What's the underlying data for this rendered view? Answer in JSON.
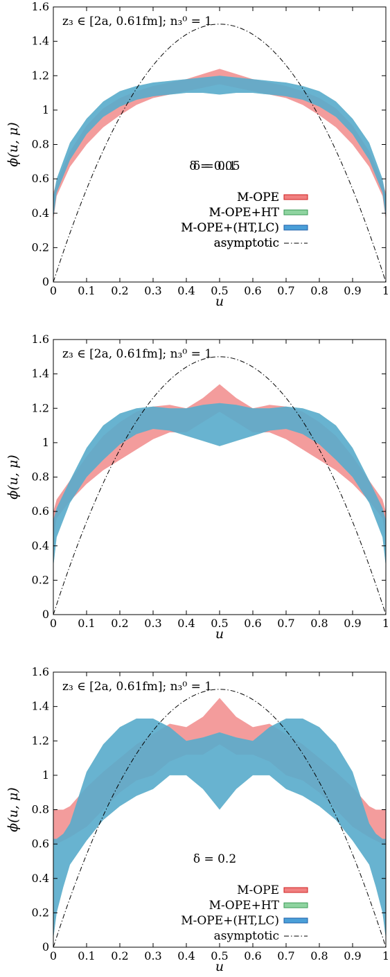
{
  "colors": {
    "m_ope": "#f08080",
    "m_ope_ht": "#8fd4a0",
    "m_ope_ht_lc": "#4a9fd8",
    "overlap": "#5a7fae",
    "asymptotic": "#000000"
  },
  "chart_data": [
    {
      "type": "area",
      "annotation": "z₃ ∈ [2a, 0.61fm]; n₃⁰ = 1",
      "delta_label": "δ = 0.05",
      "xlabel": "u",
      "ylabel": "ϕ(u, μ)",
      "xlim": [
        0,
        1
      ],
      "ylim": [
        0,
        1.6
      ],
      "xticks": [
        "0",
        "0.1",
        "0.2",
        "0.3",
        "0.4",
        "0.5",
        "0.6",
        "0.7",
        "0.8",
        "0.9",
        "1"
      ],
      "yticks": [
        "0",
        "0.2",
        "0.4",
        "0.6",
        "0.8",
        "1",
        "1.2",
        "1.4",
        "1.6"
      ],
      "legend_position": "center-right",
      "x": [
        0,
        0.01,
        0.05,
        0.1,
        0.15,
        0.2,
        0.25,
        0.3,
        0.35,
        0.4,
        0.45,
        0.5,
        0.55,
        0.6,
        0.65,
        0.7,
        0.75,
        0.8,
        0.85,
        0.9,
        0.95,
        0.99,
        1
      ],
      "series": [
        {
          "name": "M-OPE",
          "color": "#f08080",
          "upper": [
            0.52,
            0.58,
            0.76,
            0.91,
            1.01,
            1.07,
            1.11,
            1.14,
            1.16,
            1.18,
            1.21,
            1.24,
            1.21,
            1.18,
            1.16,
            1.14,
            1.11,
            1.07,
            1.01,
            0.91,
            0.76,
            0.58,
            0.52
          ],
          "lower": [
            0.36,
            0.5,
            0.67,
            0.8,
            0.9,
            0.97,
            1.03,
            1.07,
            1.09,
            1.11,
            1.13,
            1.15,
            1.13,
            1.11,
            1.09,
            1.07,
            1.03,
            0.97,
            0.9,
            0.8,
            0.67,
            0.5,
            0.36
          ]
        },
        {
          "name": "M-OPE+HT",
          "color": "#8fd4a0",
          "upper": [
            0.5,
            0.6,
            0.81,
            0.95,
            1.05,
            1.11,
            1.14,
            1.16,
            1.17,
            1.18,
            1.19,
            1.2,
            1.19,
            1.18,
            1.17,
            1.16,
            1.14,
            1.11,
            1.05,
            0.95,
            0.81,
            0.6,
            0.5
          ],
          "lower": [
            0.37,
            0.52,
            0.71,
            0.86,
            0.96,
            1.02,
            1.06,
            1.08,
            1.09,
            1.1,
            1.1,
            1.09,
            1.1,
            1.1,
            1.09,
            1.08,
            1.06,
            1.02,
            0.96,
            0.86,
            0.71,
            0.52,
            0.37
          ]
        },
        {
          "name": "M-OPE+(HT,LC)",
          "color": "#4a9fd8",
          "upper": [
            0.5,
            0.6,
            0.81,
            0.95,
            1.05,
            1.11,
            1.14,
            1.16,
            1.17,
            1.18,
            1.19,
            1.2,
            1.19,
            1.18,
            1.17,
            1.16,
            1.14,
            1.11,
            1.05,
            0.95,
            0.81,
            0.6,
            0.5
          ],
          "lower": [
            0.37,
            0.52,
            0.71,
            0.86,
            0.96,
            1.02,
            1.06,
            1.08,
            1.09,
            1.1,
            1.1,
            1.09,
            1.1,
            1.1,
            1.09,
            1.08,
            1.06,
            1.02,
            0.96,
            0.86,
            0.71,
            0.52,
            0.37
          ]
        },
        {
          "name": "asymptotic",
          "style": "dash-dot",
          "formula": "6u(1-u)"
        }
      ]
    },
    {
      "type": "area",
      "annotation": "z₃ ∈ [2a, 0.61fm]; n₃⁰ = 1",
      "delta_label": "δ = 0.1",
      "xlabel": "u",
      "ylabel": "ϕ(u, μ)",
      "xlim": [
        0,
        1
      ],
      "ylim": [
        0,
        1.6
      ],
      "xticks": [
        "0",
        "0.1",
        "0.2",
        "0.3",
        "0.4",
        "0.5",
        "0.6",
        "0.7",
        "0.8",
        "0.9",
        "1"
      ],
      "yticks": [
        "0",
        "0.2",
        "0.4",
        "0.6",
        "0.8",
        "1",
        "1.2",
        "1.4",
        "1.6"
      ],
      "legend_position": "center-right",
      "x": [
        0,
        0.01,
        0.05,
        0.1,
        0.15,
        0.2,
        0.25,
        0.3,
        0.35,
        0.4,
        0.45,
        0.5,
        0.55,
        0.6,
        0.65,
        0.7,
        0.75,
        0.8,
        0.85,
        0.9,
        0.95,
        0.99,
        1
      ],
      "series": [
        {
          "name": "M-OPE",
          "color": "#f08080",
          "upper": [
            0.6,
            0.67,
            0.78,
            0.92,
            1.04,
            1.12,
            1.18,
            1.21,
            1.22,
            1.2,
            1.26,
            1.34,
            1.26,
            1.2,
            1.22,
            1.21,
            1.18,
            1.12,
            1.04,
            0.92,
            0.78,
            0.67,
            0.6
          ],
          "lower": [
            0.44,
            0.56,
            0.66,
            0.76,
            0.84,
            0.9,
            0.96,
            1.02,
            1.06,
            1.06,
            1.12,
            1.18,
            1.12,
            1.06,
            1.06,
            1.02,
            0.96,
            0.9,
            0.84,
            0.76,
            0.66,
            0.56,
            0.44
          ]
        },
        {
          "name": "M-OPE+HT",
          "color": "#8fd4a0",
          "upper": [
            0.55,
            0.62,
            0.78,
            0.97,
            1.1,
            1.17,
            1.2,
            1.21,
            1.2,
            1.2,
            1.22,
            1.23,
            1.22,
            1.2,
            1.2,
            1.21,
            1.2,
            1.17,
            1.1,
            0.97,
            0.78,
            0.62,
            0.55
          ],
          "lower": [
            0.28,
            0.45,
            0.65,
            0.8,
            0.9,
            0.99,
            1.05,
            1.08,
            1.07,
            1.04,
            1.01,
            0.98,
            1.01,
            1.04,
            1.07,
            1.08,
            1.05,
            0.99,
            0.9,
            0.8,
            0.65,
            0.45,
            0.28
          ]
        },
        {
          "name": "M-OPE+(HT,LC)",
          "color": "#4a9fd8",
          "upper": [
            0.55,
            0.62,
            0.78,
            0.97,
            1.1,
            1.17,
            1.2,
            1.21,
            1.2,
            1.2,
            1.22,
            1.23,
            1.22,
            1.2,
            1.2,
            1.21,
            1.2,
            1.17,
            1.1,
            0.97,
            0.78,
            0.62,
            0.55
          ],
          "lower": [
            0.28,
            0.45,
            0.65,
            0.8,
            0.9,
            0.99,
            1.05,
            1.08,
            1.07,
            1.04,
            1.01,
            0.98,
            1.01,
            1.04,
            1.07,
            1.08,
            1.05,
            0.99,
            0.9,
            0.8,
            0.65,
            0.45,
            0.28
          ]
        },
        {
          "name": "asymptotic",
          "style": "dash-dot",
          "formula": "6u(1-u)"
        }
      ]
    },
    {
      "type": "area",
      "annotation": "z₃ ∈ [2a, 0.61fm]; n₃⁰ = 1",
      "delta_label": "δ = 0.2",
      "xlabel": "u",
      "ylabel": "ϕ(u, μ)",
      "xlim": [
        0,
        1
      ],
      "ylim": [
        0,
        1.6
      ],
      "xticks": [
        "0",
        "0.1",
        "0.2",
        "0.3",
        "0.4",
        "0.5",
        "0.6",
        "0.7",
        "0.8",
        "0.9",
        "1"
      ],
      "yticks": [
        "0",
        "0.2",
        "0.4",
        "0.6",
        "0.8",
        "1",
        "1.2",
        "1.4",
        "1.6"
      ],
      "legend_position": "lower-right",
      "x": [
        0,
        0.01,
        0.03,
        0.05,
        0.1,
        0.15,
        0.2,
        0.25,
        0.3,
        0.35,
        0.4,
        0.45,
        0.5,
        0.55,
        0.6,
        0.65,
        0.7,
        0.75,
        0.8,
        0.85,
        0.9,
        0.95,
        0.97,
        0.99,
        1
      ],
      "series": [
        {
          "name": "M-OPE",
          "color": "#f08080",
          "upper": [
            0.8,
            0.8,
            0.8,
            0.82,
            0.93,
            1.02,
            1.1,
            1.18,
            1.24,
            1.3,
            1.28,
            1.34,
            1.45,
            1.34,
            1.28,
            1.3,
            1.24,
            1.18,
            1.1,
            1.02,
            0.93,
            0.82,
            0.8,
            0.8,
            0.8
          ],
          "lower": [
            0.6,
            0.6,
            0.62,
            0.64,
            0.7,
            0.8,
            0.9,
            0.97,
            1.0,
            1.08,
            1.12,
            1.12,
            1.18,
            1.12,
            1.12,
            1.08,
            1.0,
            0.97,
            0.9,
            0.8,
            0.7,
            0.64,
            0.62,
            0.6,
            0.6
          ]
        },
        {
          "name": "M-OPE+HT",
          "color": "#8fd4a0",
          "upper": [
            0.63,
            0.63,
            0.66,
            0.72,
            1.02,
            1.18,
            1.28,
            1.33,
            1.33,
            1.28,
            1.2,
            1.22,
            1.25,
            1.22,
            1.2,
            1.28,
            1.33,
            1.33,
            1.28,
            1.18,
            1.02,
            0.72,
            0.66,
            0.63,
            0.63
          ],
          "lower": [
            0.05,
            0.2,
            0.35,
            0.48,
            0.62,
            0.74,
            0.82,
            0.88,
            0.92,
            1.0,
            1.0,
            0.92,
            0.8,
            0.92,
            1.0,
            1.0,
            0.92,
            0.88,
            0.82,
            0.74,
            0.62,
            0.48,
            0.35,
            0.2,
            0.05
          ]
        },
        {
          "name": "M-OPE+(HT,LC)",
          "color": "#4a9fd8",
          "upper": [
            0.63,
            0.63,
            0.66,
            0.72,
            1.02,
            1.18,
            1.28,
            1.33,
            1.33,
            1.28,
            1.2,
            1.22,
            1.25,
            1.22,
            1.2,
            1.28,
            1.33,
            1.33,
            1.28,
            1.18,
            1.02,
            0.72,
            0.66,
            0.63,
            0.63
          ],
          "lower": [
            0.05,
            0.2,
            0.35,
            0.48,
            0.62,
            0.74,
            0.82,
            0.88,
            0.92,
            1.0,
            1.0,
            0.92,
            0.8,
            0.92,
            1.0,
            1.0,
            0.92,
            0.88,
            0.82,
            0.74,
            0.62,
            0.48,
            0.35,
            0.2,
            0.05
          ]
        },
        {
          "name": "asymptotic",
          "style": "dash-dot",
          "formula": "6u(1-u)"
        }
      ]
    }
  ]
}
